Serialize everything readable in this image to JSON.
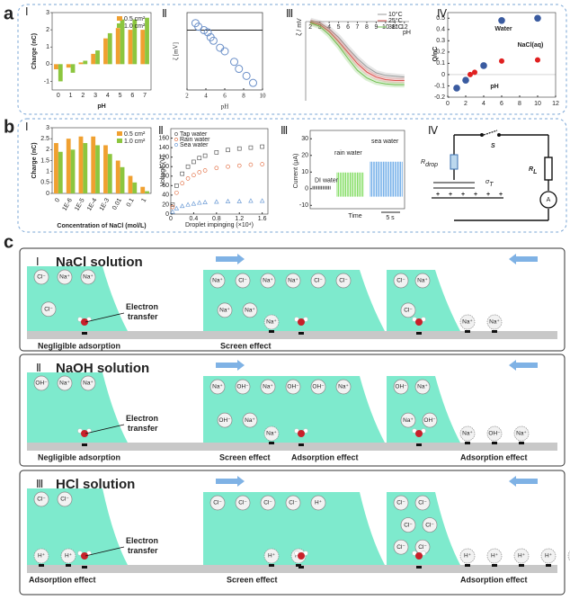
{
  "panel_labels": [
    "a",
    "b",
    "c"
  ],
  "a": {
    "I": {
      "numeral": "Ⅰ",
      "xlabel": "pH",
      "ylabel": "Charge (nC)",
      "categories": [
        "0",
        "1",
        "2",
        "3",
        "4",
        "5",
        "6",
        "7"
      ],
      "ylim": [
        -1.5,
        3
      ],
      "yticks": [
        -1,
        0,
        1,
        2,
        3
      ],
      "series": [
        {
          "name": "0.5 cm²",
          "color": "#f0a030",
          "values": [
            -0.3,
            -0.2,
            0.1,
            0.6,
            1.5,
            2.1,
            2.0,
            2.0
          ]
        },
        {
          "name": "1.0 cm²",
          "color": "#8cc63f",
          "values": [
            -1.0,
            -0.5,
            0.2,
            0.8,
            1.8,
            2.6,
            2.6,
            2.7
          ]
        }
      ]
    },
    "II": {
      "numeral": "Ⅱ",
      "xlabel": "pH",
      "ylabel": "ζ [mV]",
      "xlim": [
        2,
        10
      ],
      "xticks": [
        2,
        4,
        6,
        8,
        10
      ],
      "ylim": [
        -85,
        25
      ],
      "x": [
        2.9,
        3.2,
        3.8,
        4.2,
        4.5,
        4.8,
        5.5,
        6,
        7,
        7.5,
        8.3,
        9
      ],
      "y": [
        10,
        5,
        0,
        -3,
        -10,
        -15,
        -25,
        -30,
        -45,
        -55,
        -65,
        -75
      ]
    },
    "III": {
      "numeral": "Ⅲ",
      "xlabel": "pH",
      "ylabel": "ζ / mV",
      "xlim": [
        1.5,
        12.5
      ],
      "xticks": [
        2,
        3,
        4,
        5,
        6,
        7,
        8,
        9,
        10,
        11,
        12
      ],
      "ylim": [
        -90,
        10
      ],
      "x": [
        2,
        3,
        4,
        5,
        6,
        7,
        8,
        9,
        10,
        11,
        12
      ],
      "series": [
        {
          "name": "10°C",
          "color": "#9a9a9a",
          "values": [
            5,
            2,
            -5,
            -15,
            -28,
            -40,
            -50,
            -57,
            -60,
            -61,
            -62
          ]
        },
        {
          "name": "25°C",
          "color": "#d9534f",
          "values": [
            3,
            0,
            -8,
            -20,
            -33,
            -46,
            -56,
            -62,
            -65,
            -66,
            -66
          ]
        },
        {
          "name": "38°C",
          "color": "#6fbf4f",
          "values": [
            2,
            -2,
            -12,
            -25,
            -40,
            -54,
            -63,
            -68,
            -70,
            -71,
            -71
          ]
        }
      ]
    },
    "IV": {
      "numeral": "Ⅳ",
      "xlabel": "pH",
      "ylabel": "Q/nC",
      "xlim": [
        0,
        12
      ],
      "xticks": [
        0,
        2,
        4,
        6,
        8,
        10,
        12
      ],
      "ylim": [
        -0.2,
        0.55
      ],
      "yticks": [
        -0.2,
        -0.1,
        0,
        0.1,
        0.2,
        0.3,
        0.4,
        0.5
      ],
      "series": [
        {
          "name": "Water",
          "color": "#3a5ba0",
          "x": [
            1,
            2,
            4,
            6,
            10
          ],
          "y": [
            -0.12,
            -0.05,
            0.08,
            0.48,
            0.5
          ]
        },
        {
          "name": "NaCl(aq)",
          "color": "#e02020",
          "x": [
            2.5,
            3,
            6,
            10
          ],
          "y": [
            0.0,
            0.02,
            0.12,
            0.13
          ]
        }
      ]
    }
  },
  "b": {
    "I": {
      "numeral": "Ⅰ",
      "xlabel": "Concentration of NaCl (mol/L)",
      "ylabel": "Charge (nC)",
      "categories": [
        "0",
        "1E-6",
        "1E-5",
        "1E-4",
        "1E-3",
        "0.01",
        "0.1",
        "1"
      ],
      "ylim": [
        0,
        3
      ],
      "yticks": [
        0,
        0.5,
        1,
        1.5,
        2,
        2.5,
        3
      ],
      "series": [
        {
          "name": "0.5 cm²",
          "color": "#f0a030",
          "values": [
            2.3,
            2.5,
            2.6,
            2.6,
            2.2,
            1.5,
            0.8,
            0.3
          ]
        },
        {
          "name": "1.0 cm²",
          "color": "#8cc63f",
          "values": [
            1.9,
            2.0,
            2.3,
            2.2,
            1.8,
            1.2,
            0.5,
            0.1
          ]
        }
      ]
    },
    "II": {
      "numeral": "Ⅱ",
      "xlabel": "Droplet impinging (×10⁴)",
      "ylabel": "Voltage (V)",
      "xlim": [
        0,
        1.7
      ],
      "xticks": [
        0,
        0.4,
        0.8,
        1.2,
        1.6
      ],
      "ylim": [
        0,
        180
      ],
      "yticks": [
        0,
        20,
        40,
        60,
        80,
        100,
        120,
        140,
        160
      ],
      "x": [
        0.03,
        0.1,
        0.2,
        0.3,
        0.4,
        0.5,
        0.6,
        0.8,
        1.0,
        1.2,
        1.4,
        1.6
      ],
      "series": [
        {
          "name": "Tap water",
          "color": "#444",
          "marker": "square",
          "values": [
            20,
            60,
            85,
            100,
            110,
            118,
            123,
            130,
            135,
            138,
            140,
            142
          ]
        },
        {
          "name": "Rain water",
          "color": "#e06030",
          "marker": "circle",
          "values": [
            15,
            45,
            65,
            75,
            82,
            88,
            92,
            97,
            100,
            102,
            104,
            105
          ]
        },
        {
          "name": "Sea water",
          "color": "#5a8fd0",
          "marker": "triangle",
          "values": [
            5,
            12,
            17,
            20,
            22,
            24,
            25,
            26,
            27,
            27,
            28,
            28
          ]
        }
      ]
    },
    "III": {
      "numeral": "Ⅲ",
      "ylabel": "Current (μA)",
      "xlabel": "Time",
      "ylim": [
        -12,
        35
      ],
      "yticks": [
        -10,
        0,
        10,
        20,
        30
      ],
      "labels": [
        "DI water",
        "rain water",
        "sea water"
      ],
      "scale": "5 s"
    },
    "IV": {
      "numeral": "Ⅳ",
      "R_drop": [
        "R",
        "drop"
      ],
      "S": "S",
      "R_L": [
        "R",
        "L"
      ],
      "sigma_T": [
        "σ",
        "T"
      ],
      "ammeter": "A"
    }
  },
  "c": {
    "I": {
      "numeral": "Ⅰ",
      "title": "NaCl solution",
      "electron": [
        "Electron",
        "transfer"
      ],
      "notes": [
        "Negligible adsorption",
        "Screen effect"
      ],
      "scenes": [
        {
          "liquid": [
            "Cl⁻",
            "Na⁺",
            "Na⁺",
            "Cl⁻"
          ],
          "surface": []
        },
        {
          "liquid": [
            "Na⁺",
            "Cl⁻",
            "Na⁺",
            "Na⁺",
            "Cl⁻",
            "Cl⁻",
            "Na⁺",
            "Na⁺"
          ],
          "surface": [
            "Na⁺"
          ]
        },
        {
          "liquid": [
            "Cl⁻",
            "Na⁺",
            "Cl⁻"
          ],
          "surface": [
            "Na⁺",
            "Na⁺"
          ]
        }
      ]
    },
    "II": {
      "numeral": "Ⅱ",
      "title": "NaOH solution",
      "electron": [
        "Electron",
        "transfer"
      ],
      "notes": [
        "Negligible adsorption",
        "Screen effect",
        "Adsorption effect",
        "Adsorption effect"
      ],
      "scenes": [
        {
          "liquid": [
            "OH⁻",
            "Na⁺",
            "Na⁺"
          ],
          "surface": []
        },
        {
          "liquid": [
            "Na⁺",
            "OH⁻",
            "Na⁺",
            "OH⁻",
            "OH⁻",
            "Na⁺",
            "OH⁻",
            "Na⁺"
          ],
          "surface": [
            "Na⁺"
          ]
        },
        {
          "liquid": [
            "OH⁻",
            "Na⁺",
            "Na⁺",
            "OH⁻"
          ],
          "surface": [
            "Na⁺",
            "OH⁻",
            "Na⁺"
          ]
        }
      ]
    },
    "III": {
      "numeral": "Ⅲ",
      "title": "HCl solution",
      "electron": [
        "Electron",
        "transfer"
      ],
      "notes": [
        "Adsorption effect",
        "Screen effect",
        "Adsorption effect"
      ],
      "scenes": [
        {
          "liquid": [
            "Cl⁻",
            "Cl⁻"
          ],
          "surface": [
            "H⁺",
            "H⁺"
          ]
        },
        {
          "liquid": [
            "Cl⁻",
            "Cl⁻",
            "Cl⁻",
            "Cl⁻",
            "H⁺"
          ],
          "surface": [
            "H⁺",
            "H⁺"
          ]
        },
        {
          "liquid": [
            "Cl⁻",
            "Cl⁻",
            "Cl⁻",
            "Cl⁻",
            "Cl⁻",
            "Cl⁻"
          ],
          "surface": [
            "H⁺",
            "H⁺",
            "H⁺",
            "H⁺",
            "H⁺"
          ]
        }
      ]
    }
  }
}
